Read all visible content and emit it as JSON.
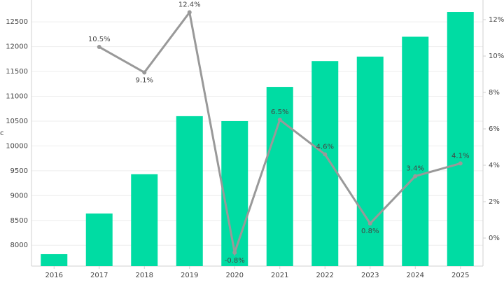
{
  "chart_data": {
    "type": "bar-line",
    "y_label": "c",
    "categories": [
      "2016",
      "2017",
      "2018",
      "2019",
      "2020",
      "2021",
      "2022",
      "2023",
      "2024",
      "2025"
    ],
    "series": [
      {
        "type": "bar",
        "color": "#00dca3",
        "values": [
          7820,
          8640,
          9430,
          10600,
          10500,
          11190,
          11710,
          11800,
          12200,
          12700
        ]
      },
      {
        "type": "line",
        "axis": "y2",
        "color": "#999999",
        "values": [
          null,
          10.5,
          9.1,
          12.4,
          -0.8,
          6.5,
          4.6,
          0.8,
          3.4,
          4.1
        ],
        "value_labels": [
          null,
          "10.5%",
          "9.1%",
          "12.4%",
          "-0.8%",
          "6.5%",
          "4.6%",
          "0.8%",
          "3.4%",
          "4.1%"
        ]
      }
    ],
    "ylim": [
      7580,
      12940
    ],
    "yticks": [
      8000,
      8500,
      9000,
      9500,
      10000,
      10500,
      11000,
      11500,
      12000,
      12500
    ],
    "y2lim": [
      -1.54,
      13.08
    ],
    "y2ticks": [
      {
        "value": 0,
        "label": "0%"
      },
      {
        "value": 2,
        "label": "2%"
      },
      {
        "value": 4,
        "label": "4%"
      },
      {
        "value": 6,
        "label": "6%"
      },
      {
        "value": 8,
        "label": "8%"
      },
      {
        "value": 10,
        "label": "10%"
      },
      {
        "value": 12,
        "label": "12%"
      }
    ],
    "grid": true
  }
}
